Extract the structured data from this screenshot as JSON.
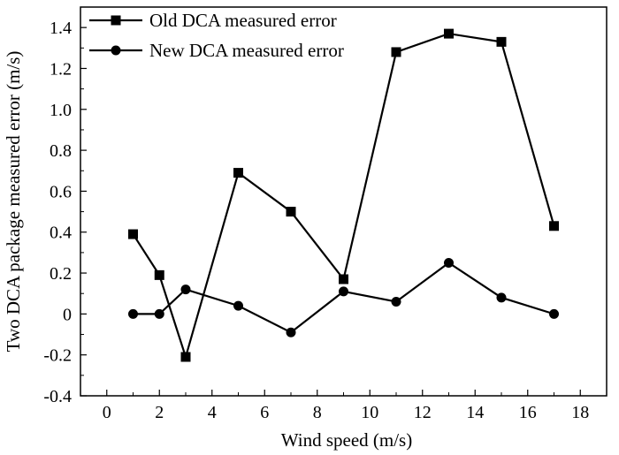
{
  "chart_data": {
    "type": "line",
    "title": "",
    "xlabel": "Wind speed (m/s)",
    "ylabel": "Two DCA package measured error (m/s)",
    "xlim": [
      -1,
      19
    ],
    "ylim": [
      -0.4,
      1.5
    ],
    "x_ticks": [
      "0",
      "2",
      "4",
      "6",
      "8",
      "10",
      "12",
      "14",
      "16",
      "18"
    ],
    "y_ticks": [
      "-0.4",
      "-0.2",
      "0",
      "0.2",
      "0.4",
      "0.6",
      "0.8",
      "1.0",
      "1.2",
      "1.4"
    ],
    "grid": false,
    "legend_position": "top-left",
    "series": [
      {
        "name": "Old DCA measured error",
        "marker": "square",
        "color": "#000000",
        "x": [
          1,
          2,
          3,
          5,
          7,
          9,
          11,
          13,
          15,
          17
        ],
        "y": [
          0.39,
          0.19,
          -0.21,
          0.69,
          0.5,
          0.17,
          1.28,
          1.37,
          1.33,
          0.43
        ]
      },
      {
        "name": "New DCA measured error",
        "marker": "circle",
        "color": "#000000",
        "x": [
          1,
          2,
          3,
          5,
          7,
          9,
          11,
          13,
          15,
          17
        ],
        "y": [
          0.0,
          0.0,
          0.12,
          0.04,
          -0.09,
          0.11,
          0.06,
          0.25,
          0.08,
          0.0
        ]
      }
    ]
  }
}
